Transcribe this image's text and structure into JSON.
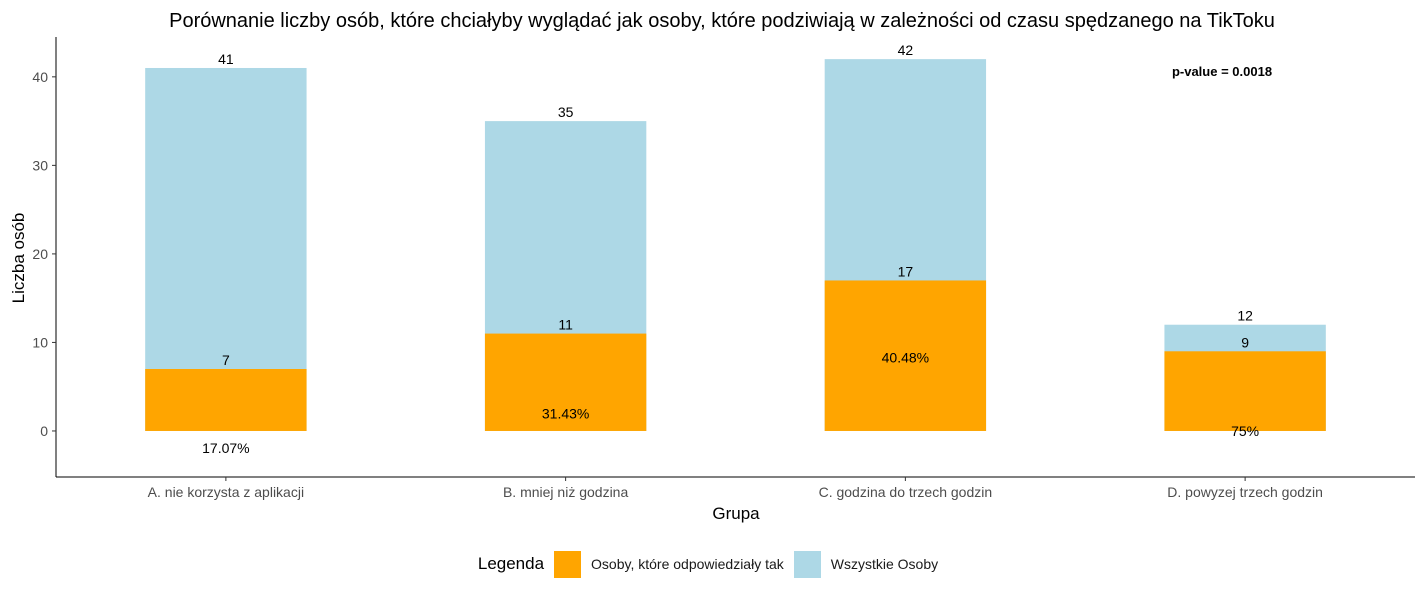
{
  "chart_data": {
    "type": "bar",
    "title": "Porównanie liczby osób, które chciałyby wyglądać jak osoby, które podziwiają w zależności od czasu spędzanego na TikToku",
    "xlabel": "Grupa",
    "ylabel": "Liczba osób",
    "ylim": [
      -5.2,
      44.5
    ],
    "yticks": [
      0,
      10,
      20,
      30,
      40
    ],
    "grid": false,
    "categories": [
      "A. nie korzysta z aplikacji",
      "B. mniej niż godzina",
      "C. godzina do trzech godzin",
      "D. powyzej trzech godzin"
    ],
    "series": [
      {
        "name": "Wszystkie Osoby",
        "values": [
          41,
          35,
          42,
          12
        ],
        "color": "#add8e6"
      },
      {
        "name": "Osoby, które odpowiedziały tak",
        "values": [
          7,
          11,
          17,
          9
        ],
        "color": "#ffa500"
      }
    ],
    "total_labels": [
      "41",
      "35",
      "42",
      "12"
    ],
    "yes_labels": [
      "7",
      "11",
      "17",
      "9"
    ],
    "percent_labels": [
      "17.07%",
      "31.43%",
      "40.48%",
      "75%"
    ],
    "percent_label_y": [
      -1.9,
      2.0,
      8.3,
      0.0
    ],
    "annotation": "p-value = 0.0018",
    "legend": {
      "title": "Legenda",
      "position": "bottom",
      "items": [
        {
          "label": "Osoby, które odpowiedziały tak",
          "color": "#ffa500"
        },
        {
          "label": "Wszystkie Osoby",
          "color": "#add8e6"
        }
      ]
    }
  }
}
